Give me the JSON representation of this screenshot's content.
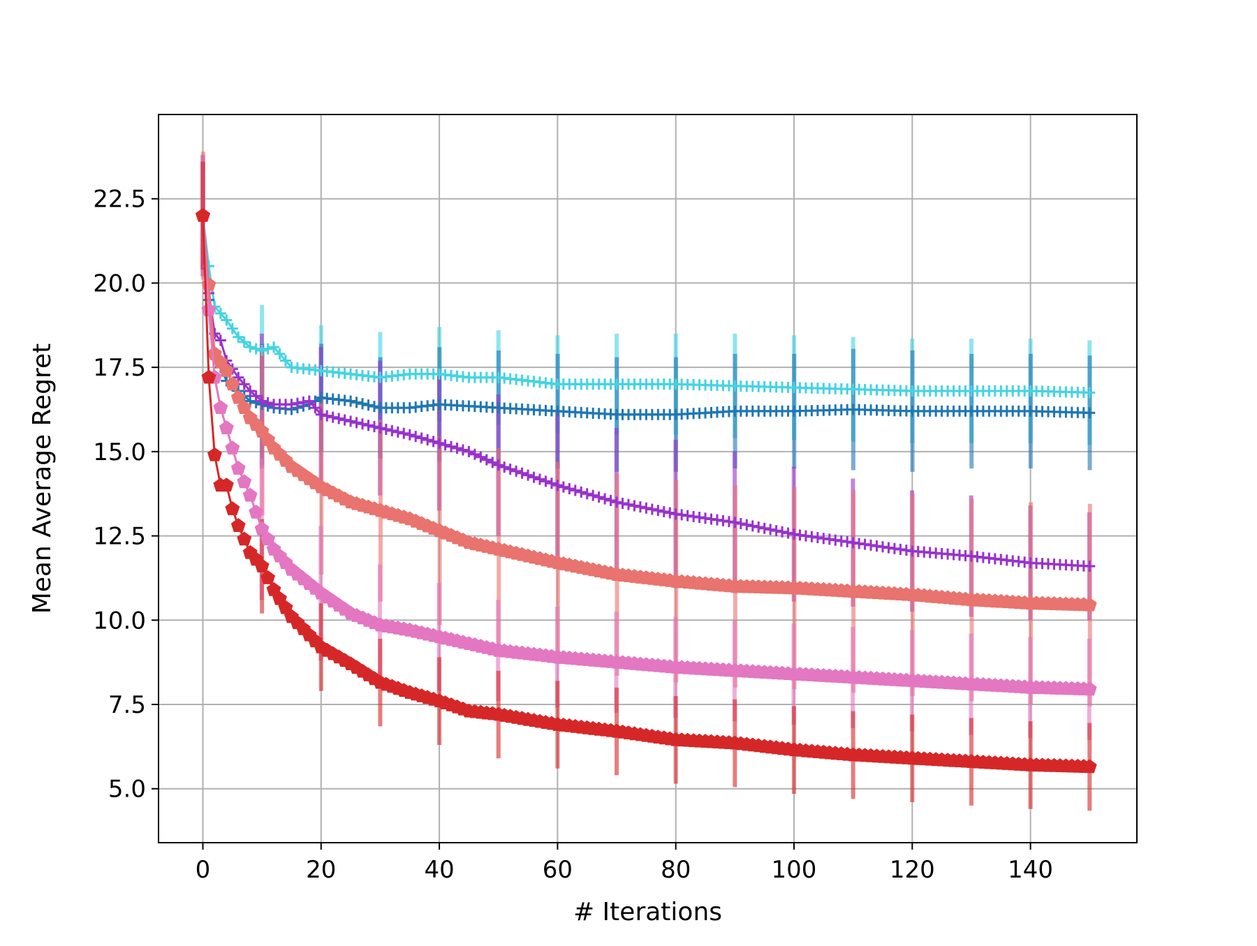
{
  "chart_data": {
    "type": "line",
    "title": "",
    "xlabel": "# Iterations",
    "ylabel": "Mean Average Regret",
    "xlim": [
      -7.5,
      158
    ],
    "ylim": [
      3.4,
      25.0
    ],
    "xticks": [
      0,
      20,
      40,
      60,
      80,
      100,
      120,
      140
    ],
    "yticks": [
      5.0,
      7.5,
      10.0,
      12.5,
      15.0,
      17.5,
      20.0,
      22.5
    ],
    "ytick_labels": [
      "5.0",
      "7.5",
      "10.0",
      "12.5",
      "15.0",
      "17.5",
      "20.0",
      "22.5"
    ],
    "grid": true,
    "legend": "none",
    "error_bar_every": 10,
    "series": [
      {
        "marker": "plus",
        "color": "#45d3e3",
        "x": [
          0,
          1,
          2,
          4,
          6,
          8,
          10,
          12,
          15,
          20,
          25,
          30,
          35,
          40,
          45,
          50,
          55,
          60,
          70,
          80,
          90,
          100,
          110,
          120,
          130,
          140,
          150
        ],
        "y": [
          22.0,
          20.5,
          19.3,
          18.9,
          18.4,
          18.1,
          18.0,
          18.1,
          17.5,
          17.4,
          17.3,
          17.2,
          17.3,
          17.3,
          17.2,
          17.2,
          17.1,
          17.0,
          17.0,
          17.0,
          16.95,
          16.9,
          16.85,
          16.8,
          16.8,
          16.8,
          16.75
        ],
        "err": [
          1.6,
          1.4,
          1.3,
          1.3,
          1.3,
          1.3,
          1.35,
          1.3,
          1.3,
          1.35,
          1.3,
          1.35,
          1.35,
          1.4,
          1.4,
          1.4,
          1.45,
          1.45,
          1.5,
          1.5,
          1.55,
          1.55,
          1.55,
          1.55,
          1.55,
          1.55,
          1.55
        ]
      },
      {
        "marker": "plus",
        "color": "#1f77b4",
        "x": [
          0,
          1,
          2,
          4,
          6,
          8,
          10,
          12,
          15,
          18,
          20,
          25,
          30,
          35,
          40,
          45,
          50,
          60,
          70,
          80,
          90,
          100,
          110,
          120,
          130,
          140,
          150
        ],
        "y": [
          22.0,
          19.5,
          17.9,
          17.1,
          16.8,
          16.5,
          16.4,
          16.3,
          16.25,
          16.4,
          16.6,
          16.5,
          16.3,
          16.3,
          16.4,
          16.35,
          16.3,
          16.2,
          16.1,
          16.1,
          16.2,
          16.2,
          16.25,
          16.2,
          16.2,
          16.2,
          16.15
        ],
        "err": [
          1.6,
          1.4,
          1.4,
          1.5,
          1.6,
          1.7,
          1.8,
          1.7,
          1.7,
          1.6,
          1.6,
          1.6,
          1.5,
          1.6,
          1.7,
          1.7,
          1.7,
          1.7,
          1.7,
          1.7,
          1.7,
          1.7,
          1.8,
          1.8,
          1.7,
          1.7,
          1.7
        ]
      },
      {
        "marker": "plus",
        "color": "#9932cc",
        "x": [
          0,
          1,
          2,
          3,
          4,
          6,
          8,
          10,
          12,
          15,
          18,
          20,
          25,
          30,
          35,
          40,
          45,
          50,
          60,
          70,
          80,
          90,
          100,
          110,
          120,
          130,
          140,
          150
        ],
        "y": [
          22.0,
          19.7,
          18.5,
          18.3,
          17.7,
          17.2,
          16.8,
          16.5,
          16.4,
          16.4,
          16.5,
          16.1,
          15.9,
          15.7,
          15.5,
          15.25,
          15.0,
          14.6,
          14.0,
          13.5,
          13.15,
          12.9,
          12.55,
          12.3,
          12.05,
          11.9,
          11.7,
          11.6
        ],
        "err": [
          1.8,
          1.4,
          1.4,
          1.5,
          1.5,
          1.8,
          1.9,
          2.0,
          2.0,
          2.1,
          2.0,
          2.0,
          2.0,
          2.0,
          2.0,
          2.0,
          2.1,
          2.1,
          2.2,
          2.2,
          2.2,
          2.1,
          2.0,
          1.9,
          1.8,
          1.8,
          1.7,
          1.6
        ]
      },
      {
        "marker": "pentagon",
        "color": "#e9736e",
        "x": [
          0,
          2,
          4,
          6,
          8,
          10,
          12,
          15,
          20,
          25,
          30,
          35,
          40,
          45,
          50,
          55,
          60,
          70,
          80,
          90,
          100,
          110,
          120,
          130,
          140,
          150
        ],
        "y": [
          22.0,
          17.9,
          17.4,
          16.6,
          16.0,
          15.6,
          15.1,
          14.55,
          13.95,
          13.5,
          13.25,
          13.0,
          12.65,
          12.3,
          12.1,
          11.9,
          11.7,
          11.35,
          11.15,
          11.0,
          10.95,
          10.85,
          10.75,
          10.6,
          10.5,
          10.45
        ],
        "err": [
          1.9,
          1.9,
          2.0,
          2.0,
          2.2,
          2.5,
          2.5,
          2.5,
          2.6,
          2.6,
          2.7,
          2.7,
          2.8,
          2.9,
          3.0,
          3.0,
          3.0,
          3.0,
          3.0,
          3.0,
          3.0,
          3.0,
          3.0,
          3.0,
          3.0,
          3.0
        ]
      },
      {
        "marker": "pentagon",
        "color": "#e377c2",
        "x": [
          0,
          1,
          2,
          3,
          4,
          5,
          6,
          8,
          10,
          12,
          15,
          20,
          25,
          30,
          35,
          40,
          45,
          50,
          60,
          70,
          80,
          90,
          100,
          110,
          120,
          130,
          140,
          150
        ],
        "y": [
          22.0,
          19.2,
          17.2,
          16.3,
          15.7,
          15.1,
          14.5,
          13.7,
          12.7,
          12.1,
          11.5,
          10.8,
          10.2,
          9.85,
          9.7,
          9.5,
          9.3,
          9.1,
          8.9,
          8.75,
          8.6,
          8.5,
          8.4,
          8.3,
          8.2,
          8.1,
          8.0,
          7.95
        ],
        "err": [
          1.6,
          1.5,
          1.5,
          1.6,
          1.7,
          1.8,
          1.9,
          2.0,
          2.1,
          2.1,
          2.1,
          2.0,
          1.9,
          1.8,
          1.7,
          1.6,
          1.5,
          1.5,
          1.5,
          1.5,
          1.5,
          1.5,
          1.5,
          1.5,
          1.5,
          1.5,
          1.5,
          1.5
        ]
      },
      {
        "marker": "pentagon",
        "color": "#d62728",
        "x": [
          0,
          1,
          2,
          3,
          4,
          5,
          6,
          8,
          10,
          12,
          15,
          20,
          25,
          30,
          35,
          40,
          45,
          50,
          60,
          70,
          80,
          90,
          100,
          110,
          120,
          130,
          140,
          150
        ],
        "y": [
          22.0,
          17.2,
          14.9,
          14.0,
          14.0,
          13.3,
          12.8,
          12.0,
          11.6,
          10.9,
          10.1,
          9.2,
          8.7,
          8.15,
          7.85,
          7.6,
          7.3,
          7.2,
          6.9,
          6.7,
          6.45,
          6.35,
          6.15,
          6.0,
          5.9,
          5.8,
          5.7,
          5.65
        ],
        "err": [
          1.6,
          1.4,
          1.4,
          1.4,
          1.4,
          1.4,
          1.4,
          1.4,
          1.4,
          1.4,
          1.4,
          1.3,
          1.3,
          1.3,
          1.3,
          1.3,
          1.3,
          1.3,
          1.3,
          1.3,
          1.3,
          1.3,
          1.3,
          1.3,
          1.3,
          1.3,
          1.3,
          1.3
        ]
      }
    ]
  }
}
